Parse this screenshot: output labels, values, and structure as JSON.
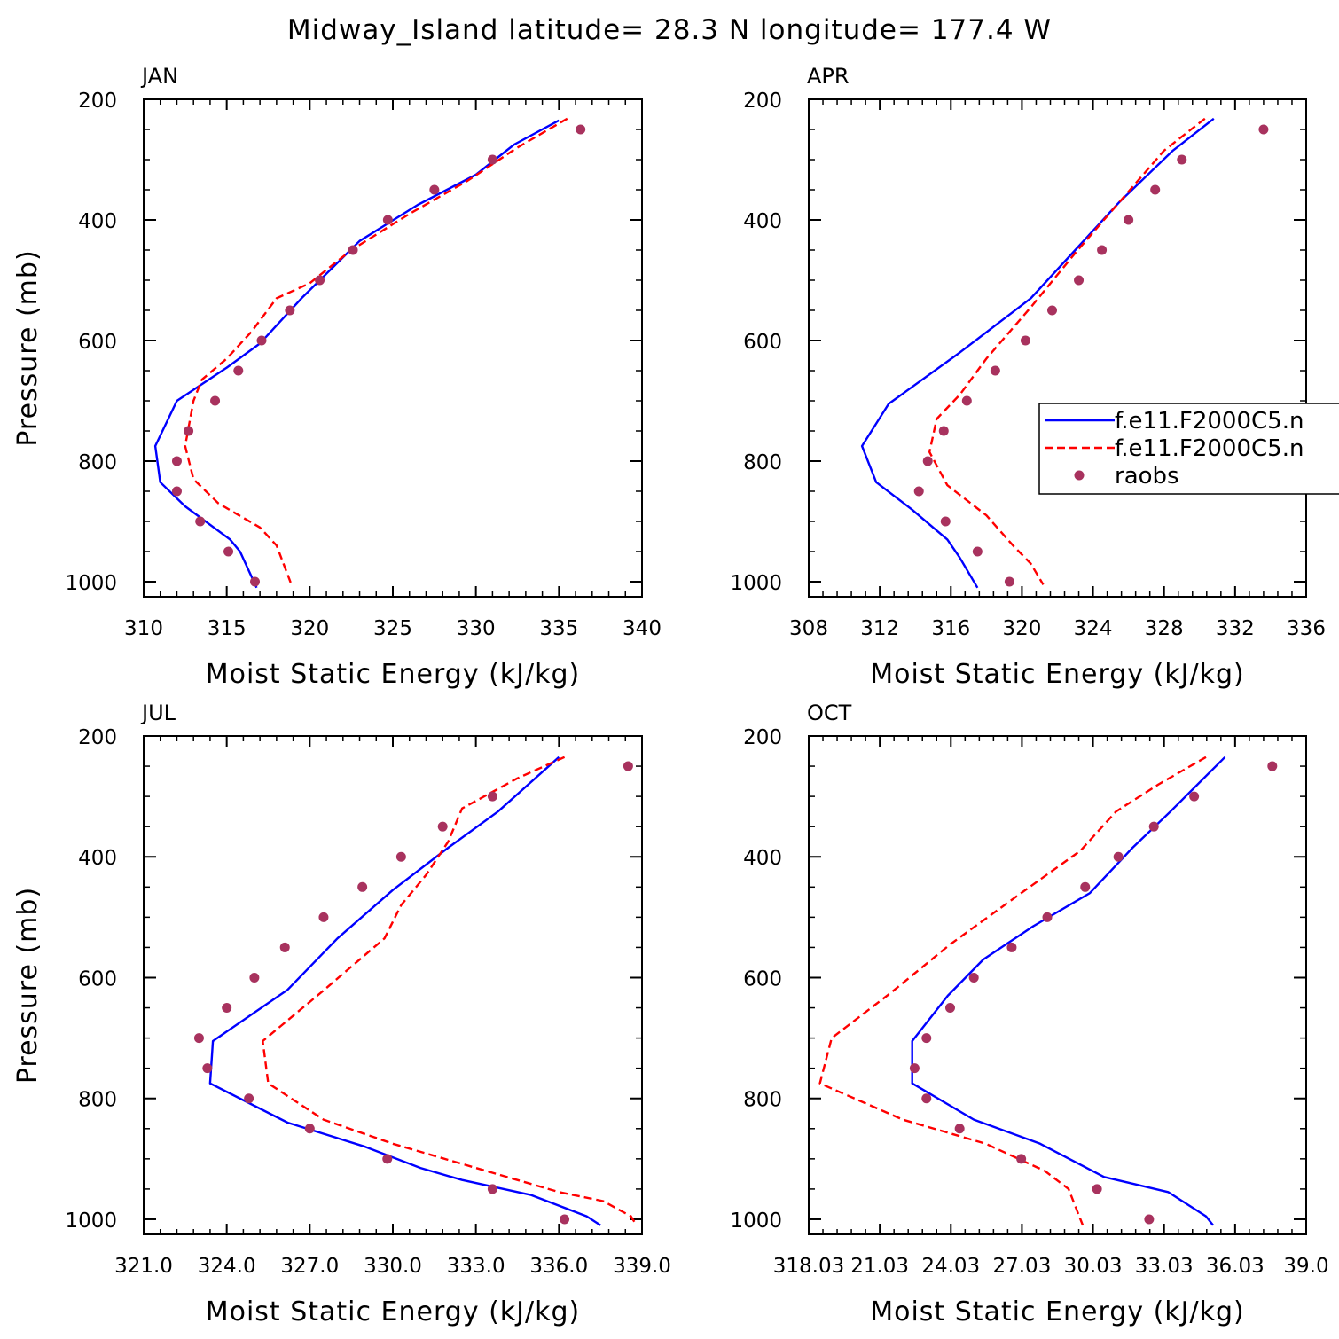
{
  "figure": {
    "title": "Midway_Island  latitude= 28.3 N longitude= 177.4 W"
  },
  "legend": {
    "entries": [
      {
        "label": "f.e11.F2000C5.n",
        "style": "solid",
        "color": "#0000ff"
      },
      {
        "label": "f.e11.F2000C5.n",
        "style": "dashed",
        "color": "#ff0000"
      },
      {
        "label": "raobs",
        "style": "marker",
        "color": "#a8325e"
      }
    ]
  },
  "colors": {
    "model_1": "#0000ff",
    "model_2": "#ff0000",
    "raobs": "#a8325e"
  },
  "chart_data": [
    {
      "type": "line",
      "panel": "JAN",
      "xlabel": "Moist Static Energy (kJ/kg)",
      "ylabel": "Pressure (mb)",
      "xlim": [
        310,
        340
      ],
      "ylim": [
        1025,
        200
      ],
      "y_inverted": true,
      "xticks": [
        "310",
        "315",
        "320",
        "325",
        "330",
        "335",
        "340"
      ],
      "yticks": [
        "200",
        "400",
        "600",
        "800",
        "1000"
      ],
      "series": [
        {
          "style": "solid",
          "points": [
            [
              335.0,
              235
            ],
            [
              332.3,
              275
            ],
            [
              330.0,
              325
            ],
            [
              326.5,
              375
            ],
            [
              323.0,
              435
            ],
            [
              319.5,
              530
            ],
            [
              317.0,
              605
            ],
            [
              315.0,
              645
            ],
            [
              312.0,
              700
            ],
            [
              310.7,
              775
            ],
            [
              311.0,
              835
            ],
            [
              312.5,
              875
            ],
            [
              315.2,
              930
            ],
            [
              315.8,
              950
            ],
            [
              316.8,
              1010
            ]
          ]
        },
        {
          "style": "dashed",
          "points": [
            [
              335.5,
              232
            ],
            [
              332.5,
              280
            ],
            [
              329.5,
              335
            ],
            [
              326.0,
              390
            ],
            [
              322.5,
              450
            ],
            [
              320.0,
              505
            ],
            [
              318.0,
              530
            ],
            [
              316.5,
              585
            ],
            [
              315.0,
              630
            ],
            [
              313.5,
              665
            ],
            [
              313.0,
              700
            ],
            [
              312.5,
              775
            ],
            [
              313.0,
              830
            ],
            [
              314.5,
              870
            ],
            [
              317.0,
              910
            ],
            [
              318.0,
              940
            ],
            [
              318.9,
              1005
            ]
          ]
        },
        {
          "style": "markers",
          "points": [
            [
              336.3,
              250
            ],
            [
              331.0,
              300
            ],
            [
              327.5,
              350
            ],
            [
              324.7,
              400
            ],
            [
              322.6,
              450
            ],
            [
              320.6,
              500
            ],
            [
              318.8,
              550
            ],
            [
              317.1,
              600
            ],
            [
              315.7,
              650
            ],
            [
              314.3,
              700
            ],
            [
              312.7,
              750
            ],
            [
              312.0,
              800
            ],
            [
              312.0,
              850
            ],
            [
              313.4,
              900
            ],
            [
              315.1,
              950
            ],
            [
              316.7,
              1000
            ]
          ]
        }
      ]
    },
    {
      "type": "line",
      "panel": "APR",
      "xlabel": "Moist Static Energy (kJ/kg)",
      "ylabel": "",
      "xlim": [
        308,
        336
      ],
      "ylim": [
        1025,
        200
      ],
      "y_inverted": true,
      "xticks": [
        "308",
        "312",
        "316",
        "320",
        "324",
        "328",
        "332",
        "336"
      ],
      "yticks": [
        "200",
        "400",
        "600",
        "800",
        "1000"
      ],
      "series": [
        {
          "style": "solid",
          "points": [
            [
              330.8,
              232
            ],
            [
              328.5,
              285
            ],
            [
              325.5,
              370
            ],
            [
              323.0,
              450
            ],
            [
              320.5,
              530
            ],
            [
              316.5,
              620
            ],
            [
              312.5,
              705
            ],
            [
              311.0,
              775
            ],
            [
              311.8,
              835
            ],
            [
              313.8,
              880
            ],
            [
              315.8,
              930
            ],
            [
              316.5,
              960
            ],
            [
              317.5,
              1010
            ]
          ]
        },
        {
          "style": "dashed",
          "points": [
            [
              330.3,
              232
            ],
            [
              328.0,
              285
            ],
            [
              325.5,
              370
            ],
            [
              323.0,
              455
            ],
            [
              320.5,
              545
            ],
            [
              318.0,
              630
            ],
            [
              316.5,
              690
            ],
            [
              315.2,
              730
            ],
            [
              314.8,
              785
            ],
            [
              315.8,
              840
            ],
            [
              318.0,
              890
            ],
            [
              319.5,
              940
            ],
            [
              320.5,
              970
            ],
            [
              321.2,
              1005
            ]
          ]
        },
        {
          "style": "markers",
          "points": [
            [
              333.6,
              250
            ],
            [
              329.0,
              300
            ],
            [
              327.5,
              350
            ],
            [
              326.0,
              400
            ],
            [
              324.5,
              450
            ],
            [
              323.2,
              500
            ],
            [
              321.7,
              550
            ],
            [
              320.2,
              600
            ],
            [
              318.5,
              650
            ],
            [
              316.9,
              700
            ],
            [
              315.6,
              750
            ],
            [
              314.7,
              800
            ],
            [
              314.2,
              850
            ],
            [
              315.7,
              900
            ],
            [
              317.5,
              950
            ],
            [
              319.3,
              1000
            ]
          ]
        }
      ]
    },
    {
      "type": "line",
      "panel": "JUL",
      "xlabel": "Moist Static Energy (kJ/kg)",
      "ylabel": "Pressure (mb)",
      "xlim": [
        321.0,
        339.0
      ],
      "ylim": [
        1025,
        200
      ],
      "y_inverted": true,
      "xticks": [
        "321.0",
        "324.0",
        "327.0",
        "330.0",
        "333.0",
        "336.0",
        "339.0"
      ],
      "yticks": [
        "200",
        "400",
        "600",
        "800",
        "1000"
      ],
      "series": [
        {
          "style": "solid",
          "points": [
            [
              336.0,
              235
            ],
            [
              333.8,
              325
            ],
            [
              332.0,
              385
            ],
            [
              330.0,
              455
            ],
            [
              328.0,
              535
            ],
            [
              326.2,
              620
            ],
            [
              323.5,
              705
            ],
            [
              323.4,
              775
            ],
            [
              326.2,
              840
            ],
            [
              329.0,
              880
            ],
            [
              331.0,
              915
            ],
            [
              332.5,
              935
            ],
            [
              335.0,
              960
            ],
            [
              337.0,
              995
            ],
            [
              337.5,
              1010
            ]
          ]
        },
        {
          "style": "dashed",
          "points": [
            [
              336.2,
              235
            ],
            [
              334.5,
              270
            ],
            [
              332.5,
              320
            ],
            [
              332.0,
              375
            ],
            [
              331.2,
              430
            ],
            [
              330.3,
              480
            ],
            [
              329.7,
              535
            ],
            [
              327.4,
              625
            ],
            [
              325.3,
              705
            ],
            [
              325.5,
              775
            ],
            [
              327.5,
              835
            ],
            [
              330.0,
              875
            ],
            [
              333.0,
              915
            ],
            [
              336.0,
              955
            ],
            [
              337.6,
              970
            ],
            [
              338.6,
              995
            ],
            [
              338.8,
              1010
            ]
          ]
        },
        {
          "style": "markers",
          "points": [
            [
              338.5,
              250
            ],
            [
              333.6,
              300
            ],
            [
              331.8,
              350
            ],
            [
              330.3,
              400
            ],
            [
              328.9,
              450
            ],
            [
              327.5,
              500
            ],
            [
              326.1,
              550
            ],
            [
              325.0,
              600
            ],
            [
              324.0,
              650
            ],
            [
              323.0,
              700
            ],
            [
              323.3,
              750
            ],
            [
              324.8,
              800
            ],
            [
              327.0,
              850
            ],
            [
              329.8,
              900
            ],
            [
              333.6,
              950
            ],
            [
              336.2,
              1000
            ]
          ]
        }
      ]
    },
    {
      "type": "line",
      "panel": "OCT",
      "xlabel": "Moist Static Energy (kJ/kg)",
      "ylabel": "",
      "xlim": [
        318.03,
        339.03
      ],
      "ylim": [
        1025,
        200
      ],
      "y_inverted": true,
      "xticks": [
        "318.03",
        "21.03",
        "24.03",
        "27.03",
        "30.03",
        "33.03",
        "36.03",
        "39.0"
      ],
      "yticks": [
        "200",
        "400",
        "600",
        "800",
        "1000"
      ],
      "series": [
        {
          "style": "solid",
          "points": [
            [
              335.6,
              235
            ],
            [
              333.3,
              325
            ],
            [
              331.7,
              385
            ],
            [
              329.9,
              460
            ],
            [
              327.5,
              515
            ],
            [
              325.4,
              570
            ],
            [
              323.9,
              630
            ],
            [
              322.4,
              705
            ],
            [
              322.4,
              775
            ],
            [
              325.0,
              835
            ],
            [
              327.8,
              875
            ],
            [
              330.5,
              930
            ],
            [
              333.2,
              955
            ],
            [
              334.8,
              995
            ],
            [
              335.1,
              1010
            ]
          ]
        },
        {
          "style": "dashed",
          "points": [
            [
              334.8,
              235
            ],
            [
              332.8,
              280
            ],
            [
              331.0,
              325
            ],
            [
              329.5,
              390
            ],
            [
              327.0,
              460
            ],
            [
              324.0,
              545
            ],
            [
              321.5,
              625
            ],
            [
              319.0,
              700
            ],
            [
              318.5,
              775
            ],
            [
              322.0,
              835
            ],
            [
              325.5,
              875
            ],
            [
              328.0,
              920
            ],
            [
              329.0,
              950
            ],
            [
              329.4,
              990
            ],
            [
              329.6,
              1010
            ]
          ]
        },
        {
          "style": "markers",
          "points": [
            [
              337.6,
              250
            ],
            [
              334.3,
              300
            ],
            [
              332.6,
              350
            ],
            [
              331.1,
              400
            ],
            [
              329.7,
              450
            ],
            [
              328.1,
              500
            ],
            [
              326.6,
              550
            ],
            [
              325.0,
              600
            ],
            [
              324.0,
              650
            ],
            [
              323.0,
              700
            ],
            [
              322.5,
              750
            ],
            [
              323.0,
              800
            ],
            [
              324.4,
              850
            ],
            [
              327.0,
              900
            ],
            [
              330.2,
              950
            ],
            [
              332.4,
              1000
            ]
          ]
        }
      ]
    }
  ]
}
